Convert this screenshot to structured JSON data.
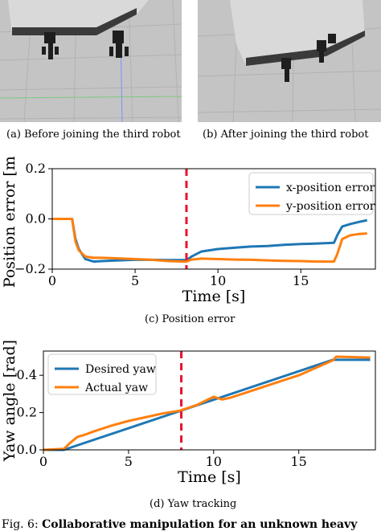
{
  "captions": {
    "a": "(a) Before joining the third robot",
    "b": "(b) After joining the third robot",
    "c": "(c) Position error",
    "d": "(d) Yaw tracking",
    "fig_label": "Fig. 6:",
    "fig_text": "Collaborative manipulation for an unknown heavy"
  },
  "colors": {
    "blue": "#1f77b4",
    "orange": "#ff7f0e",
    "red_dash": "#e8112d"
  },
  "chart_data": [
    {
      "type": "line",
      "xlabel": "Time [s]",
      "ylabel": "Position error [m]",
      "xlim": [
        0,
        19.5
      ],
      "ylim": [
        -0.2,
        0.2
      ],
      "xticks": [
        0,
        5,
        10,
        15
      ],
      "yticks": [
        -0.2,
        0.0,
        0.2
      ],
      "ytick_labels": [
        "−0.2",
        "0.0",
        "0.2"
      ],
      "grid": false,
      "legend": "top-right",
      "vline_x": 8.1,
      "series": [
        {
          "name": "x-position error",
          "color": "#1f77b4",
          "x": [
            0,
            1.2,
            1.4,
            1.6,
            2.0,
            2.5,
            3.0,
            4.0,
            5.0,
            6.0,
            7.0,
            8.0,
            8.1,
            8.4,
            9.0,
            10.0,
            11.0,
            12.0,
            13.0,
            14.0,
            15.0,
            16.0,
            17.0,
            17.2,
            17.5,
            18.0,
            18.5,
            19.0
          ],
          "y": [
            0.0,
            0.0,
            -0.08,
            -0.12,
            -0.16,
            -0.17,
            -0.168,
            -0.165,
            -0.163,
            -0.163,
            -0.164,
            -0.164,
            -0.165,
            -0.15,
            -0.13,
            -0.12,
            -0.115,
            -0.11,
            -0.108,
            -0.103,
            -0.1,
            -0.098,
            -0.095,
            -0.065,
            -0.03,
            -0.02,
            -0.012,
            -0.005
          ]
        },
        {
          "name": "y-position error",
          "color": "#ff7f0e",
          "x": [
            0,
            1.2,
            1.4,
            1.6,
            2.0,
            2.5,
            3.0,
            4.0,
            5.0,
            6.0,
            7.0,
            8.0,
            8.1,
            8.4,
            9.0,
            10.0,
            11.0,
            12.0,
            13.0,
            14.0,
            15.0,
            16.0,
            17.0,
            17.2,
            17.5,
            18.0,
            18.5,
            19.0
          ],
          "y": [
            0.0,
            0.0,
            -0.09,
            -0.125,
            -0.15,
            -0.155,
            -0.155,
            -0.157,
            -0.16,
            -0.163,
            -0.168,
            -0.17,
            -0.17,
            -0.162,
            -0.158,
            -0.16,
            -0.162,
            -0.163,
            -0.165,
            -0.167,
            -0.168,
            -0.17,
            -0.17,
            -0.14,
            -0.08,
            -0.065,
            -0.06,
            -0.058
          ]
        }
      ]
    },
    {
      "type": "line",
      "xlabel": "Time [s]",
      "ylabel": "Yaw angle [rad]",
      "xlim": [
        0,
        19.5
      ],
      "ylim": [
        0,
        0.53
      ],
      "xticks": [
        0,
        5,
        10,
        15
      ],
      "yticks": [
        0.0,
        0.2,
        0.4
      ],
      "ytick_labels": [
        "0.0",
        "0.2",
        "0.4"
      ],
      "grid": false,
      "legend": "top-left",
      "vline_x": 8.1,
      "series": [
        {
          "name": "Desired yaw",
          "color": "#1f77b4",
          "x": [
            0,
            1.2,
            17.0,
            19.2
          ],
          "y": [
            0.0,
            0.0,
            0.483,
            0.483
          ]
        },
        {
          "name": "Actual yaw",
          "color": "#ff7f0e",
          "x": [
            0,
            1.2,
            1.6,
            2.0,
            2.4,
            3.0,
            4.0,
            5.0,
            6.0,
            7.0,
            8.0,
            9.0,
            10.0,
            10.5,
            11.0,
            12.0,
            13.0,
            14.0,
            15.0,
            16.0,
            17.0,
            17.2,
            19.2
          ],
          "y": [
            0.0,
            0.005,
            0.04,
            0.07,
            0.08,
            0.1,
            0.13,
            0.155,
            0.175,
            0.195,
            0.21,
            0.24,
            0.285,
            0.27,
            0.28,
            0.31,
            0.34,
            0.37,
            0.4,
            0.44,
            0.48,
            0.5,
            0.495
          ]
        }
      ]
    }
  ]
}
